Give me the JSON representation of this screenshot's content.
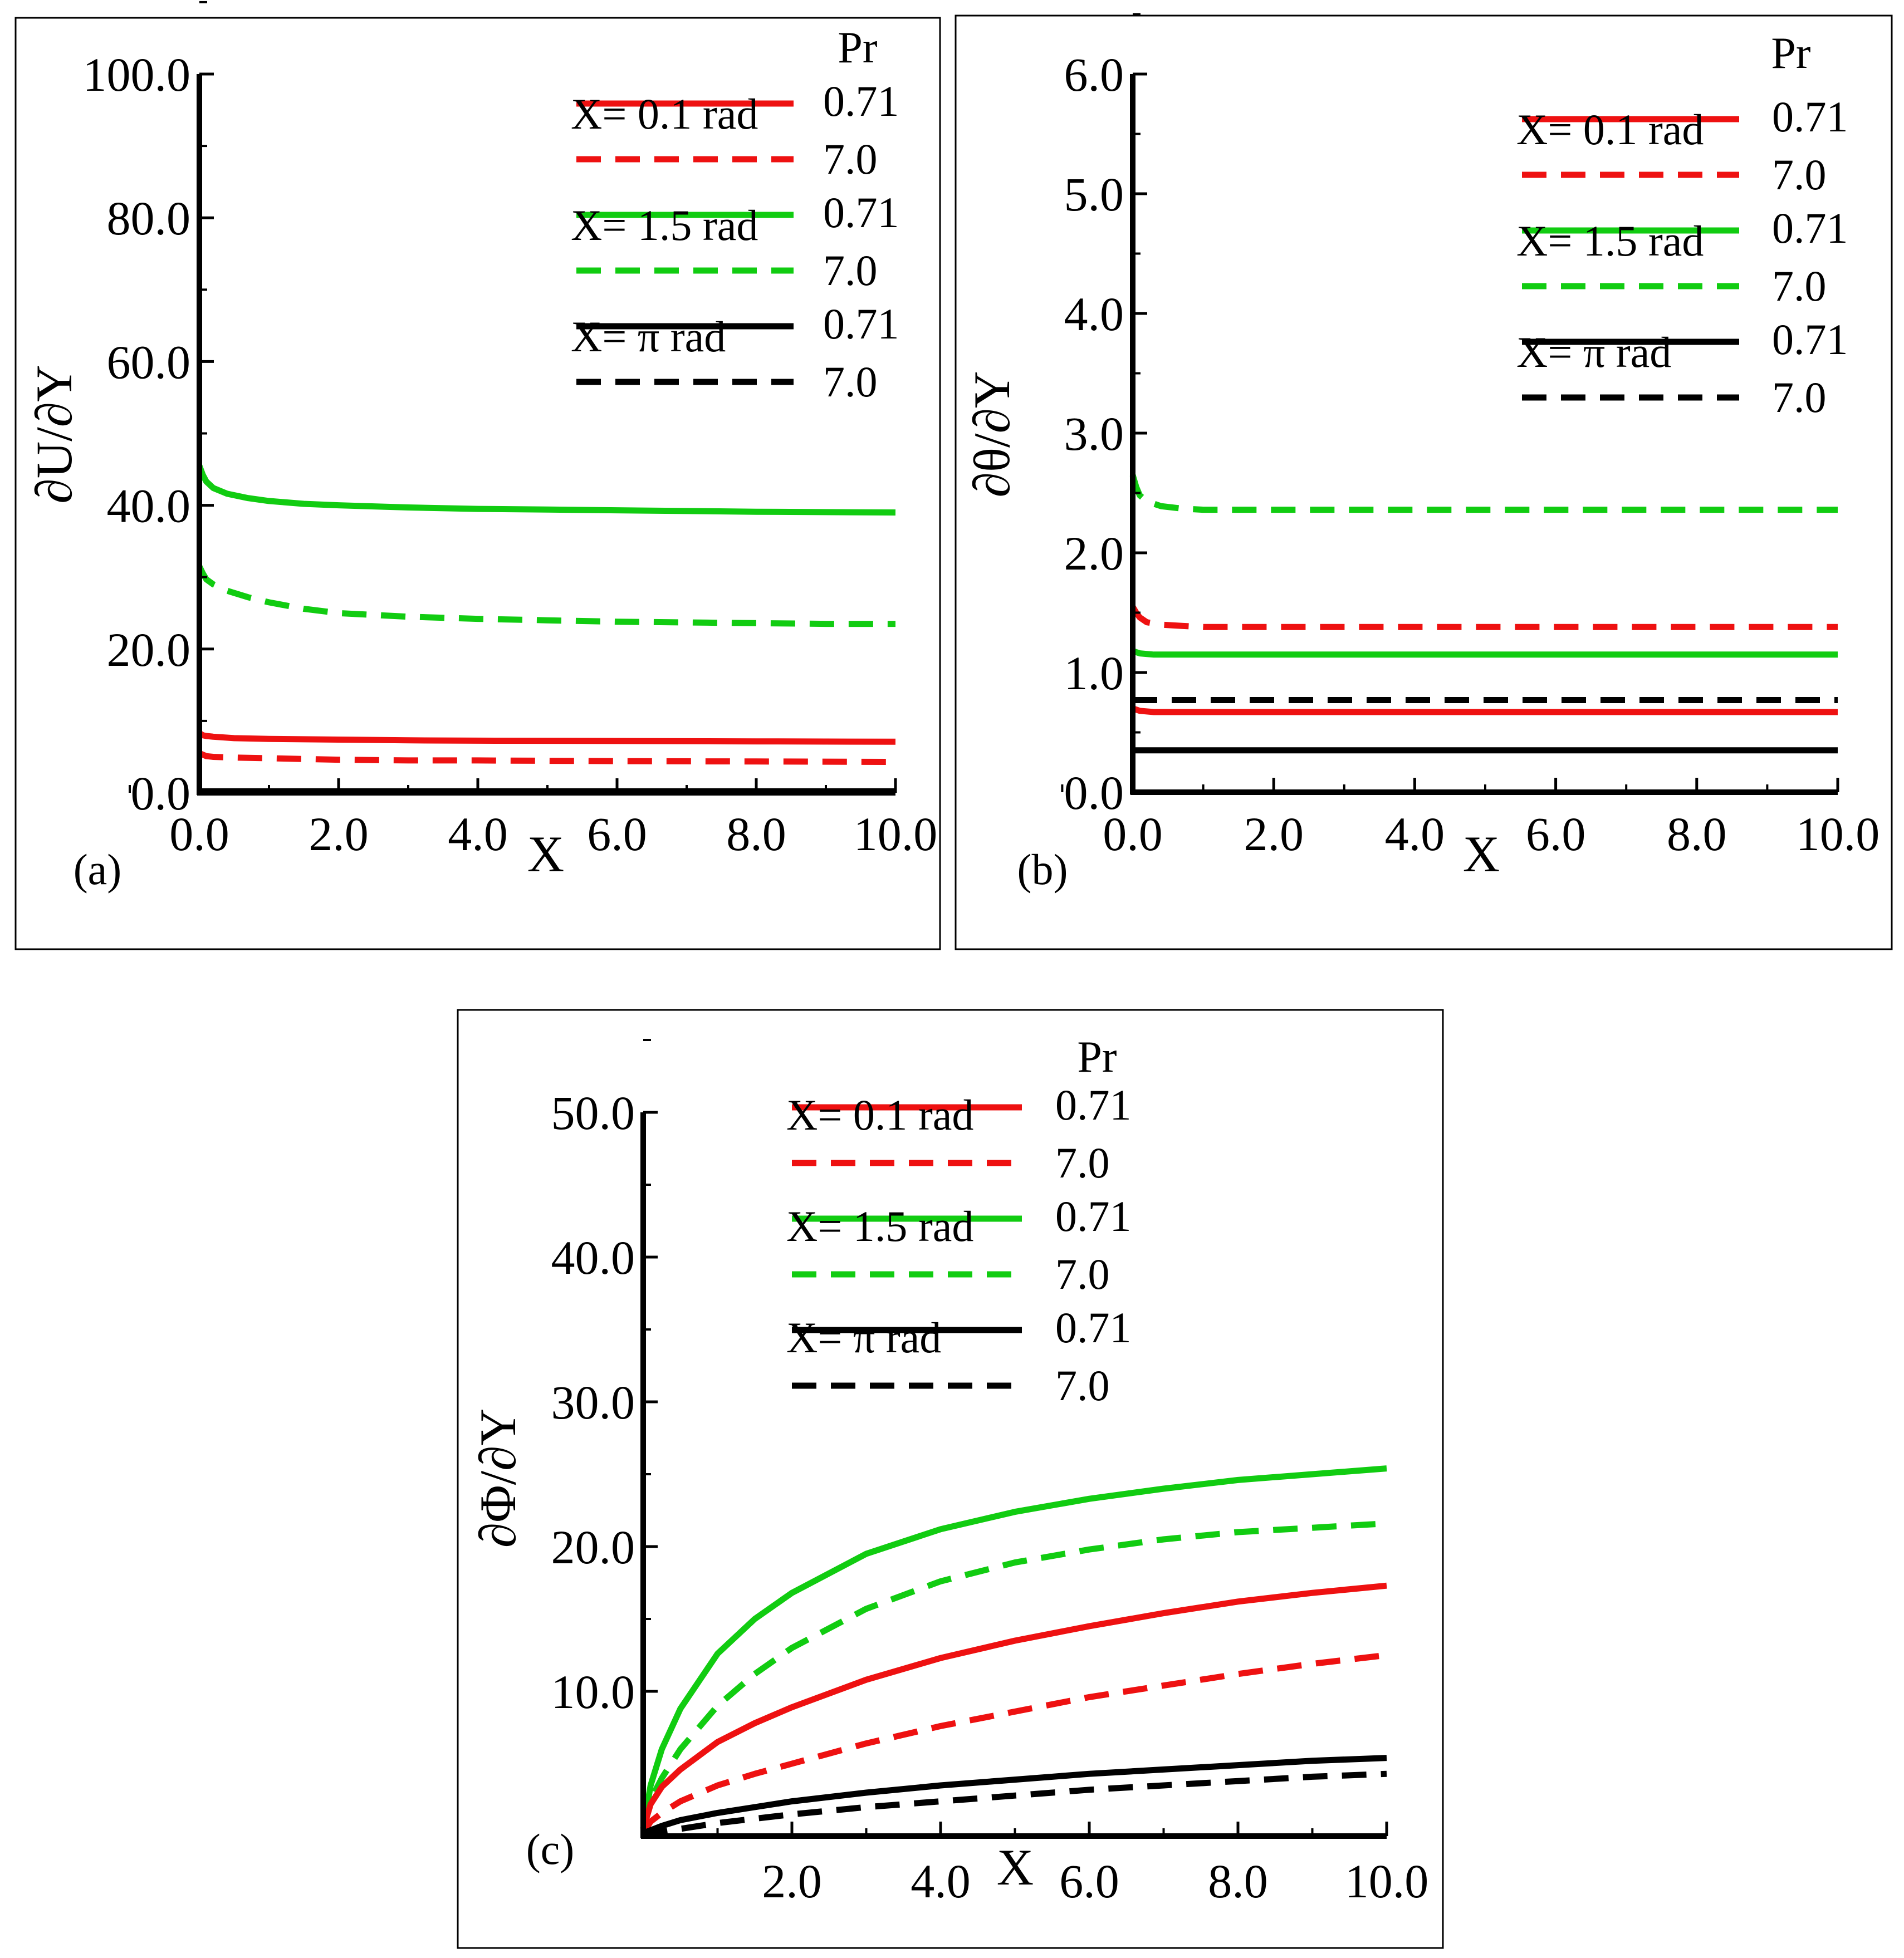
{
  "chart_data": [
    {
      "type": "line",
      "panel_label": "(a)",
      "xlabel": "X",
      "ylabel": "∂U/∂Y",
      "xlim": [
        0,
        10
      ],
      "ylim": [
        0,
        100
      ],
      "xticks": [
        "0.0",
        "2.0",
        "4.0",
        "6.0",
        "8.0",
        "10.0"
      ],
      "yticks": [
        "0.0",
        "20.0",
        "40.0",
        "60.0",
        "80.0",
        "100.0"
      ],
      "legend_title": "Pr",
      "legend": [
        {
          "group": "X= 0.1 rad",
          "solid": "0.71",
          "dashed": "7.0",
          "color": "#ee1111"
        },
        {
          "group": "X= 1.5 rad",
          "solid": "0.71",
          "dashed": "7.0",
          "color": "#11cc11"
        },
        {
          "group": "X= π rad",
          "solid": "0.71",
          "dashed": "7.0",
          "color": "#000000"
        }
      ],
      "series": [
        {
          "name": "X= 1.5 rad, Pr=0.71",
          "color": "#11cc11",
          "dash": false,
          "x": [
            0,
            0.05,
            0.1,
            0.2,
            0.4,
            0.7,
            1,
            1.5,
            2,
            3,
            4,
            5,
            6,
            7,
            8,
            9,
            10
          ],
          "y": [
            45.5,
            44.2,
            43.3,
            42.4,
            41.6,
            41.0,
            40.6,
            40.2,
            40.0,
            39.7,
            39.5,
            39.4,
            39.3,
            39.2,
            39.1,
            39.05,
            39.0
          ]
        },
        {
          "name": "X= 1.5 rad, Pr=7.0",
          "color": "#11cc11",
          "dash": true,
          "x": [
            0,
            0.05,
            0.1,
            0.2,
            0.4,
            0.7,
            1,
            1.5,
            2,
            3,
            4,
            5,
            6,
            7,
            8,
            9,
            10
          ],
          "y": [
            31.5,
            30.5,
            29.7,
            29.0,
            28.1,
            27.2,
            26.5,
            25.6,
            25.0,
            24.5,
            24.2,
            24.0,
            23.8,
            23.7,
            23.6,
            23.5,
            23.5
          ]
        },
        {
          "name": "X= 0.1 rad, Pr=0.71",
          "color": "#ee1111",
          "dash": false,
          "x": [
            0,
            0.05,
            0.1,
            0.2,
            0.5,
            1,
            2,
            3,
            4,
            6,
            8,
            10
          ],
          "y": [
            8.3,
            8.0,
            7.9,
            7.8,
            7.6,
            7.5,
            7.4,
            7.3,
            7.25,
            7.2,
            7.15,
            7.1
          ]
        },
        {
          "name": "X= 0.1 rad, Pr=7.0",
          "color": "#ee1111",
          "dash": true,
          "x": [
            0,
            0.05,
            0.1,
            0.2,
            0.5,
            1,
            2,
            3,
            4,
            6,
            8,
            10
          ],
          "y": [
            5.5,
            5.3,
            5.1,
            5.0,
            4.9,
            4.8,
            4.6,
            4.5,
            4.5,
            4.4,
            4.35,
            4.3
          ]
        },
        {
          "name": "X= π rad, Pr=0.71",
          "color": "#000000",
          "dash": false,
          "x": [
            0,
            10
          ],
          "y": [
            0.2,
            0.2
          ]
        },
        {
          "name": "X= π rad, Pr=7.0",
          "color": "#000000",
          "dash": true,
          "x": [
            0,
            10
          ],
          "y": [
            0.1,
            0.1
          ]
        }
      ]
    },
    {
      "type": "line",
      "panel_label": "(b)",
      "xlabel": "X",
      "ylabel": "∂θ/∂Y",
      "xlim": [
        0,
        10
      ],
      "ylim": [
        0,
        6
      ],
      "xticks": [
        "0.0",
        "2.0",
        "4.0",
        "6.0",
        "8.0",
        "10.0"
      ],
      "yticks": [
        "0.0",
        "1.0",
        "2.0",
        "3.0",
        "4.0",
        "5.0",
        "6.0"
      ],
      "legend_title": "Pr",
      "legend": [
        {
          "group": "X= 0.1 rad",
          "solid": "0.71",
          "dashed": "7.0",
          "color": "#ee1111"
        },
        {
          "group": "X= 1.5 rad",
          "solid": "0.71",
          "dashed": "7.0",
          "color": "#11cc11"
        },
        {
          "group": "X= π rad",
          "solid": "0.71",
          "dashed": "7.0",
          "color": "#000000"
        }
      ],
      "series": [
        {
          "name": "X= 1.5 rad, Pr=7.0",
          "color": "#11cc11",
          "dash": true,
          "x": [
            0,
            0.05,
            0.1,
            0.2,
            0.4,
            0.7,
            1,
            2,
            3,
            4,
            6,
            8,
            10
          ],
          "y": [
            2.65,
            2.55,
            2.48,
            2.43,
            2.39,
            2.37,
            2.36,
            2.36,
            2.36,
            2.36,
            2.36,
            2.36,
            2.36
          ]
        },
        {
          "name": "X= 0.1 rad, Pr=7.0",
          "color": "#ee1111",
          "dash": true,
          "x": [
            0,
            0.05,
            0.1,
            0.2,
            0.4,
            0.7,
            1,
            2,
            3,
            4,
            6,
            8,
            10
          ],
          "y": [
            1.55,
            1.5,
            1.46,
            1.42,
            1.4,
            1.39,
            1.38,
            1.38,
            1.38,
            1.38,
            1.38,
            1.38,
            1.38
          ]
        },
        {
          "name": "X= 1.5 rad, Pr=0.71",
          "color": "#11cc11",
          "dash": false,
          "x": [
            0,
            0.1,
            0.3,
            1,
            10
          ],
          "y": [
            1.18,
            1.16,
            1.15,
            1.15,
            1.15
          ]
        },
        {
          "name": "X= π rad, Pr=7.0",
          "color": "#000000",
          "dash": true,
          "x": [
            0,
            10
          ],
          "y": [
            0.77,
            0.77
          ]
        },
        {
          "name": "X= 0.1 rad, Pr=0.71",
          "color": "#ee1111",
          "dash": false,
          "x": [
            0,
            0.1,
            0.3,
            1,
            10
          ],
          "y": [
            0.7,
            0.68,
            0.67,
            0.67,
            0.67
          ]
        },
        {
          "name": "X= π rad, Pr=0.71",
          "color": "#000000",
          "dash": false,
          "x": [
            0,
            10
          ],
          "y": [
            0.35,
            0.35
          ]
        }
      ]
    },
    {
      "type": "line",
      "panel_label": "(c)",
      "xlabel": "X",
      "ylabel": "∂Φ/∂Y",
      "xlim": [
        0,
        10
      ],
      "ylim": [
        0,
        50
      ],
      "xticks": [
        "2.0",
        "4.0",
        "6.0",
        "8.0",
        "10.0"
      ],
      "yticks": [
        "10.0",
        "20.0",
        "30.0",
        "40.0",
        "50.0"
      ],
      "legend_title": "Pr",
      "legend": [
        {
          "group": "X= 0.1 rad",
          "solid": "0.71",
          "dashed": "7.0",
          "color": "#ee1111"
        },
        {
          "group": "X= 1.5 rad",
          "solid": "0.71",
          "dashed": "7.0",
          "color": "#11cc11"
        },
        {
          "group": "X=  π rad",
          "solid": "0.71",
          "dashed": "7.0",
          "color": "#000000"
        }
      ],
      "series": [
        {
          "name": "X= 1.5 rad, Pr=0.71",
          "color": "#11cc11",
          "dash": false,
          "x": [
            0,
            0.1,
            0.25,
            0.5,
            1,
            1.5,
            2,
            3,
            4,
            5,
            6,
            7,
            8,
            9,
            10
          ],
          "y": [
            0.5,
            3.5,
            6.0,
            8.8,
            12.6,
            15.0,
            16.8,
            19.5,
            21.2,
            22.4,
            23.3,
            24.0,
            24.6,
            25.0,
            25.4
          ]
        },
        {
          "name": "X= 1.5 rad, Pr=7.0",
          "color": "#11cc11",
          "dash": true,
          "x": [
            0,
            0.1,
            0.25,
            0.5,
            1,
            1.5,
            2,
            3,
            4,
            5,
            6,
            7,
            8,
            9,
            10
          ],
          "y": [
            0.5,
            2.5,
            4.0,
            6.0,
            9.0,
            11.2,
            13.0,
            15.7,
            17.6,
            18.9,
            19.8,
            20.5,
            21.0,
            21.3,
            21.6
          ]
        },
        {
          "name": "X= 0.1 rad, Pr=0.71",
          "color": "#ee1111",
          "dash": false,
          "x": [
            0,
            0.1,
            0.25,
            0.5,
            1,
            1.5,
            2,
            3,
            4,
            5,
            6,
            7,
            8,
            9,
            10
          ],
          "y": [
            0.5,
            2.2,
            3.4,
            4.6,
            6.5,
            7.8,
            8.9,
            10.8,
            12.3,
            13.5,
            14.5,
            15.4,
            16.2,
            16.8,
            17.3
          ]
        },
        {
          "name": "X= 0.1 rad, Pr=7.0",
          "color": "#ee1111",
          "dash": true,
          "x": [
            0,
            0.1,
            0.25,
            0.5,
            1,
            1.5,
            2,
            3,
            4,
            5,
            6,
            7,
            8,
            9,
            10
          ],
          "y": [
            0.2,
            1.0,
            1.6,
            2.4,
            3.5,
            4.3,
            5.0,
            6.4,
            7.6,
            8.6,
            9.6,
            10.4,
            11.2,
            11.9,
            12.5
          ]
        },
        {
          "name": "X= π rad, Pr=0.71",
          "color": "#000000",
          "dash": false,
          "x": [
            0,
            0.25,
            0.5,
            1,
            1.5,
            2,
            3,
            4,
            5,
            6,
            7,
            8,
            9,
            10
          ],
          "y": [
            0.2,
            0.7,
            1.1,
            1.6,
            2.0,
            2.4,
            3.0,
            3.5,
            3.9,
            4.3,
            4.6,
            4.9,
            5.2,
            5.4
          ]
        },
        {
          "name": "X= π rad, Pr=7.0",
          "color": "#000000",
          "dash": true,
          "x": [
            0,
            0.25,
            0.5,
            1,
            1.5,
            2,
            3,
            4,
            5,
            6,
            7,
            8,
            9,
            10
          ],
          "y": [
            0.05,
            0.3,
            0.5,
            0.9,
            1.2,
            1.5,
            2.0,
            2.4,
            2.8,
            3.2,
            3.5,
            3.8,
            4.1,
            4.3
          ]
        }
      ]
    }
  ]
}
